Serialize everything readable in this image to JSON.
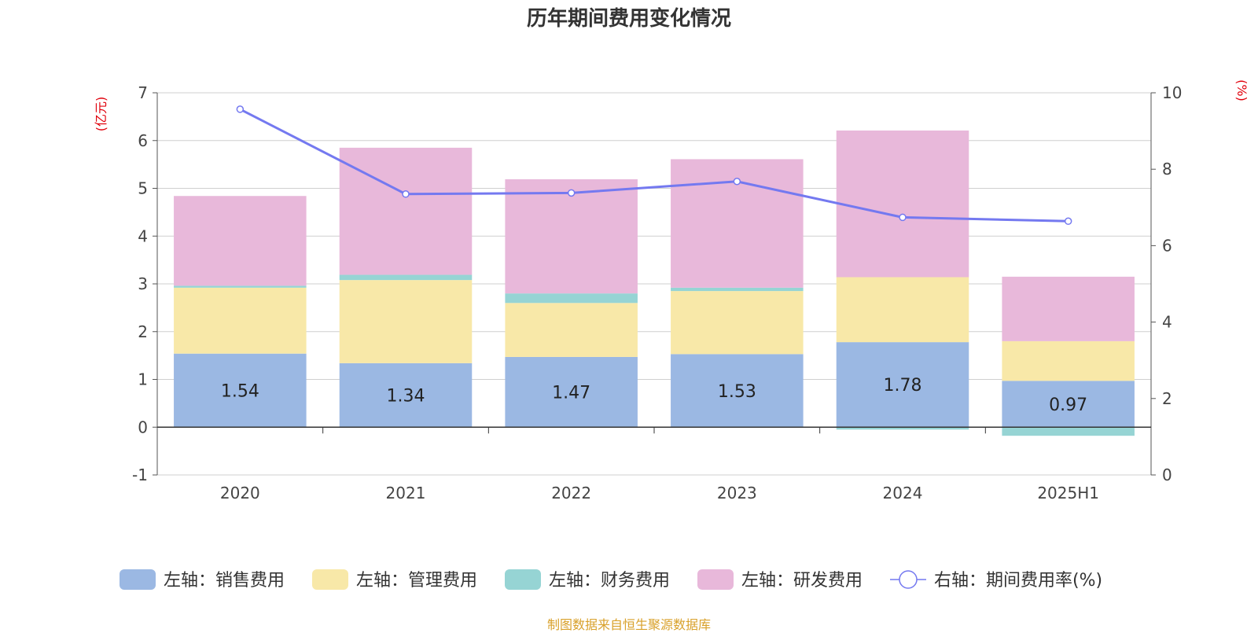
{
  "chart_data": {
    "type": "bar",
    "stacked": true,
    "title": "历年期间费用变化情况",
    "categories": [
      "2020",
      "2021",
      "2022",
      "2023",
      "2024",
      "2025H1"
    ],
    "left_axis": {
      "unit_label": "(亿元)",
      "ylim": [
        -1,
        7
      ],
      "ticks": [
        -1,
        0,
        1,
        2,
        3,
        4,
        5,
        6,
        7
      ]
    },
    "right_axis": {
      "unit_label": "(%)",
      "ylim": [
        0,
        10
      ],
      "ticks": [
        0,
        2,
        4,
        6,
        8,
        10
      ]
    },
    "grid": true,
    "legend_position": "bottom",
    "series": [
      {
        "name": "左轴：销售费用",
        "axis": "left",
        "type": "bar",
        "color": "#9bb8e3",
        "values": [
          1.54,
          1.34,
          1.47,
          1.53,
          1.78,
          0.97
        ],
        "labels": [
          "1.54",
          "1.34",
          "1.47",
          "1.53",
          "1.78",
          "0.97"
        ]
      },
      {
        "name": "左轴：管理费用",
        "axis": "left",
        "type": "bar",
        "color": "#f8e8a8",
        "values": [
          1.38,
          1.74,
          1.13,
          1.32,
          1.36,
          0.83
        ]
      },
      {
        "name": "左轴：财务费用",
        "axis": "left",
        "type": "bar",
        "color": "#96d4d4",
        "values": [
          0.04,
          0.11,
          0.2,
          0.07,
          -0.05,
          -0.18
        ]
      },
      {
        "name": "左轴：研发费用",
        "axis": "left",
        "type": "bar",
        "color": "#e8b8da",
        "values": [
          1.88,
          2.66,
          2.39,
          2.69,
          3.07,
          1.35
        ]
      },
      {
        "name": "右轴：期间费用率(%)",
        "axis": "right",
        "type": "line",
        "color": "#7479f0",
        "values": [
          9.57,
          7.35,
          7.38,
          7.68,
          6.74,
          6.64
        ]
      }
    ],
    "source_note": "制图数据来自恒生聚源数据库"
  }
}
